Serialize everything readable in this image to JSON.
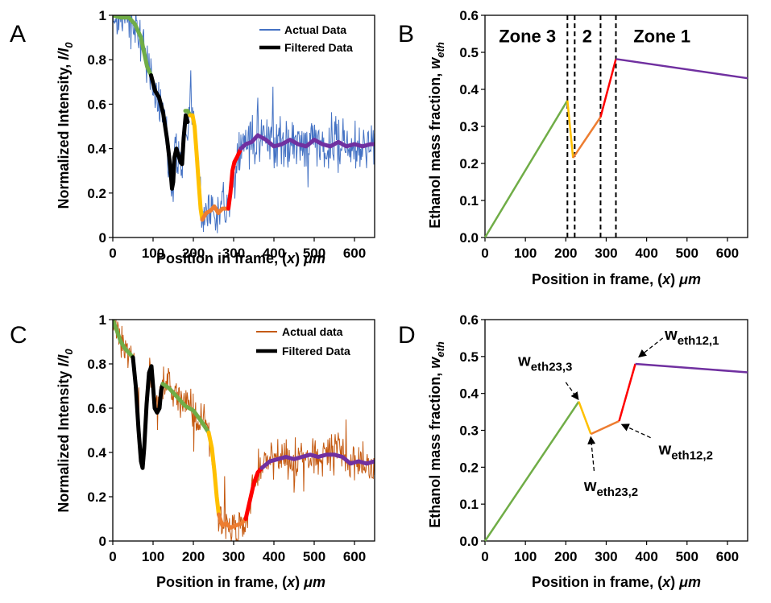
{
  "chart_data": [
    {
      "panel": "A",
      "type": "line",
      "xlabel": "Position in frame, (x) μm",
      "ylabel": "Normalized Intensity, I/I0",
      "xlim": [
        0,
        650
      ],
      "ylim": [
        0,
        1
      ],
      "xticks": [
        "0",
        "100",
        "200",
        "300",
        "400",
        "500",
        "600"
      ],
      "yticks": [
        "0",
        "0.2",
        "0.4",
        "0.6",
        "0.8",
        "1"
      ],
      "legend": [
        "Actual Data",
        "Filtered Data"
      ],
      "raw_color": "#4472C4",
      "noise": 0.09,
      "filtered_segments": [
        {
          "color": "#70AD47",
          "points": [
            [
              0,
              1.0
            ],
            [
              20,
              0.99
            ],
            [
              40,
              0.99
            ],
            [
              55,
              0.96
            ],
            [
              70,
              0.9
            ],
            [
              85,
              0.77
            ],
            [
              95,
              0.73
            ]
          ]
        },
        {
          "color": "#000000",
          "points": [
            [
              95,
              0.73
            ],
            [
              105,
              0.66
            ],
            [
              115,
              0.63
            ],
            [
              125,
              0.56
            ],
            [
              135,
              0.44
            ],
            [
              142,
              0.33
            ],
            [
              147,
              0.22
            ],
            [
              150,
              0.25
            ],
            [
              153,
              0.36
            ],
            [
              158,
              0.4
            ],
            [
              163,
              0.37
            ],
            [
              168,
              0.34
            ],
            [
              172,
              0.33
            ],
            [
              176,
              0.45
            ],
            [
              181,
              0.55
            ],
            [
              186,
              0.52
            ]
          ]
        },
        {
          "color": "#70AD47",
          "points": [
            [
              180,
              0.57
            ],
            [
              186,
              0.57
            ],
            [
              192,
              0.55
            ]
          ]
        },
        {
          "color": "#FFC000",
          "points": [
            [
              192,
              0.55
            ],
            [
              198,
              0.55
            ],
            [
              203,
              0.5
            ],
            [
              208,
              0.38
            ],
            [
              213,
              0.25
            ],
            [
              218,
              0.13
            ],
            [
              222,
              0.08
            ]
          ]
        },
        {
          "color": "#ED7D31",
          "points": [
            [
              222,
              0.08
            ],
            [
              232,
              0.11
            ],
            [
              242,
              0.12
            ],
            [
              252,
              0.14
            ],
            [
              262,
              0.11
            ],
            [
              272,
              0.13
            ],
            [
              287,
              0.13
            ]
          ]
        },
        {
          "color": "#FF0000",
          "points": [
            [
              287,
              0.13
            ],
            [
              292,
              0.2
            ],
            [
              297,
              0.3
            ],
            [
              302,
              0.34
            ],
            [
              308,
              0.36
            ],
            [
              318,
              0.4
            ]
          ]
        },
        {
          "color": "#7030A0",
          "points": [
            [
              318,
              0.4
            ],
            [
              330,
              0.42
            ],
            [
              345,
              0.43
            ],
            [
              360,
              0.46
            ],
            [
              380,
              0.44
            ],
            [
              400,
              0.41
            ],
            [
              420,
              0.42
            ],
            [
              440,
              0.44
            ],
            [
              460,
              0.42
            ],
            [
              480,
              0.41
            ],
            [
              500,
              0.44
            ],
            [
              520,
              0.42
            ],
            [
              540,
              0.41
            ],
            [
              560,
              0.43
            ],
            [
              580,
              0.41
            ],
            [
              600,
              0.42
            ],
            [
              620,
              0.41
            ],
            [
              640,
              0.42
            ],
            [
              650,
              0.42
            ]
          ]
        }
      ]
    },
    {
      "panel": "B",
      "type": "line",
      "xlabel": "Position in frame, (x) μm",
      "ylabel": "Ethanol mass fraction, weth",
      "xlim": [
        0,
        650
      ],
      "ylim": [
        0,
        0.6
      ],
      "xticks": [
        "0",
        "100",
        "200",
        "300",
        "400",
        "500",
        "600"
      ],
      "yticks": [
        "0.0",
        "0.1",
        "0.2",
        "0.3",
        "0.4",
        "0.5",
        "0.6"
      ],
      "vlines": [
        204,
        222,
        286,
        324
      ],
      "zones": [
        {
          "label": "Zone 3",
          "x": 105,
          "y": 0.545
        },
        {
          "label": "2",
          "x": 253,
          "y": 0.545
        },
        {
          "label": "Zone 1",
          "x": 438,
          "y": 0.545
        }
      ],
      "segments": [
        {
          "color": "#70AD47",
          "points": [
            [
              0,
              0.0
            ],
            [
              204,
              0.37
            ]
          ]
        },
        {
          "color": "#FFC000",
          "points": [
            [
              204,
              0.37
            ],
            [
              218,
              0.215
            ]
          ]
        },
        {
          "color": "#ED7D31",
          "points": [
            [
              218,
              0.215
            ],
            [
              286,
              0.325
            ]
          ]
        },
        {
          "color": "#FF0000",
          "points": [
            [
              286,
              0.325
            ],
            [
              324,
              0.482
            ]
          ]
        },
        {
          "color": "#7030A0",
          "points": [
            [
              324,
              0.482
            ],
            [
              650,
              0.43
            ]
          ]
        }
      ]
    },
    {
      "panel": "C",
      "type": "line",
      "xlabel": "Position in frame, (x) μm",
      "ylabel": "Normalized Intensity I/I0",
      "xlim": [
        0,
        650
      ],
      "ylim": [
        0,
        1
      ],
      "xticks": [
        "0",
        "100",
        "200",
        "300",
        "400",
        "500",
        "600"
      ],
      "yticks": [
        "0",
        "0.2",
        "0.4",
        "0.6",
        "0.8",
        "1"
      ],
      "legend": [
        "Actual data",
        "Filtered Data"
      ],
      "raw_color": "#C55A11",
      "noise": 0.07,
      "filtered_segments": [
        {
          "color": "#70AD47",
          "points": [
            [
              0,
              1.0
            ],
            [
              10,
              0.95
            ],
            [
              20,
              0.9
            ],
            [
              30,
              0.87
            ],
            [
              40,
              0.85
            ],
            [
              50,
              0.83
            ]
          ]
        },
        {
          "color": "#000000",
          "points": [
            [
              50,
              0.83
            ],
            [
              57,
              0.7
            ],
            [
              64,
              0.5
            ],
            [
              70,
              0.36
            ],
            [
              74,
              0.33
            ],
            [
              78,
              0.42
            ],
            [
              84,
              0.62
            ],
            [
              90,
              0.76
            ],
            [
              96,
              0.79
            ],
            [
              100,
              0.7
            ],
            [
              104,
              0.6
            ],
            [
              110,
              0.58
            ],
            [
              116,
              0.6
            ],
            [
              120,
              0.68
            ],
            [
              124,
              0.71
            ]
          ]
        },
        {
          "color": "#70AD47",
          "points": [
            [
              124,
              0.71
            ],
            [
              140,
              0.69
            ],
            [
              160,
              0.65
            ],
            [
              180,
              0.61
            ],
            [
              200,
              0.59
            ],
            [
              220,
              0.54
            ],
            [
              238,
              0.49
            ]
          ]
        },
        {
          "color": "#FFC000",
          "points": [
            [
              238,
              0.49
            ],
            [
              246,
              0.42
            ],
            [
              252,
              0.32
            ],
            [
              258,
              0.2
            ],
            [
              263,
              0.12
            ]
          ]
        },
        {
          "color": "#ED7D31",
          "points": [
            [
              263,
              0.12
            ],
            [
              272,
              0.07
            ],
            [
              282,
              0.08
            ],
            [
              292,
              0.06
            ],
            [
              305,
              0.07
            ],
            [
              320,
              0.08
            ],
            [
              330,
              0.1
            ]
          ]
        },
        {
          "color": "#FF0000",
          "points": [
            [
              330,
              0.1
            ],
            [
              340,
              0.18
            ],
            [
              350,
              0.26
            ],
            [
              360,
              0.31
            ],
            [
              370,
              0.33
            ]
          ]
        },
        {
          "color": "#7030A0",
          "points": [
            [
              370,
              0.33
            ],
            [
              390,
              0.36
            ],
            [
              410,
              0.37
            ],
            [
              430,
              0.38
            ],
            [
              450,
              0.37
            ],
            [
              470,
              0.38
            ],
            [
              490,
              0.39
            ],
            [
              510,
              0.38
            ],
            [
              530,
              0.39
            ],
            [
              550,
              0.39
            ],
            [
              570,
              0.38
            ],
            [
              590,
              0.35
            ],
            [
              610,
              0.36
            ],
            [
              630,
              0.35
            ],
            [
              650,
              0.36
            ]
          ]
        }
      ]
    },
    {
      "panel": "D",
      "type": "line",
      "xlabel": "Position in frame, (x) μm",
      "ylabel": "Ethanol mass fraction, weth",
      "xlim": [
        0,
        650
      ],
      "ylim": [
        0,
        0.6
      ],
      "xticks": [
        "0",
        "100",
        "200",
        "300",
        "400",
        "500",
        "600"
      ],
      "yticks": [
        "0.0",
        "0.1",
        "0.2",
        "0.3",
        "0.4",
        "0.5",
        "0.6"
      ],
      "segments": [
        {
          "color": "#70AD47",
          "points": [
            [
              0,
              0.0
            ],
            [
              232,
              0.378
            ]
          ]
        },
        {
          "color": "#FFC000",
          "points": [
            [
              232,
              0.378
            ],
            [
              262,
              0.29
            ]
          ]
        },
        {
          "color": "#ED7D31",
          "points": [
            [
              262,
              0.29
            ],
            [
              332,
              0.325
            ]
          ]
        },
        {
          "color": "#FF0000",
          "points": [
            [
              332,
              0.325
            ],
            [
              372,
              0.48
            ]
          ]
        },
        {
          "color": "#7030A0",
          "points": [
            [
              372,
              0.48
            ],
            [
              650,
              0.457
            ]
          ]
        }
      ],
      "annotations": [
        {
          "main": "w",
          "sub": "eth23,3",
          "text_x": 82,
          "text_y": 0.475,
          "from": [
            200,
            0.43
          ],
          "to": [
            230,
            0.385
          ]
        },
        {
          "main": "w",
          "sub": "eth23,2",
          "text_x": 245,
          "text_y": 0.135,
          "from": [
            270,
            0.19
          ],
          "to": [
            262,
            0.28
          ]
        },
        {
          "main": "w",
          "sub": "eth12,2",
          "text_x": 430,
          "text_y": 0.235,
          "from": [
            410,
            0.28
          ],
          "to": [
            340,
            0.315
          ]
        },
        {
          "main": "w",
          "sub": "eth12,1",
          "text_x": 445,
          "text_y": 0.545,
          "from": [
            440,
            0.55
          ],
          "to": [
            382,
            0.5
          ]
        }
      ]
    }
  ]
}
